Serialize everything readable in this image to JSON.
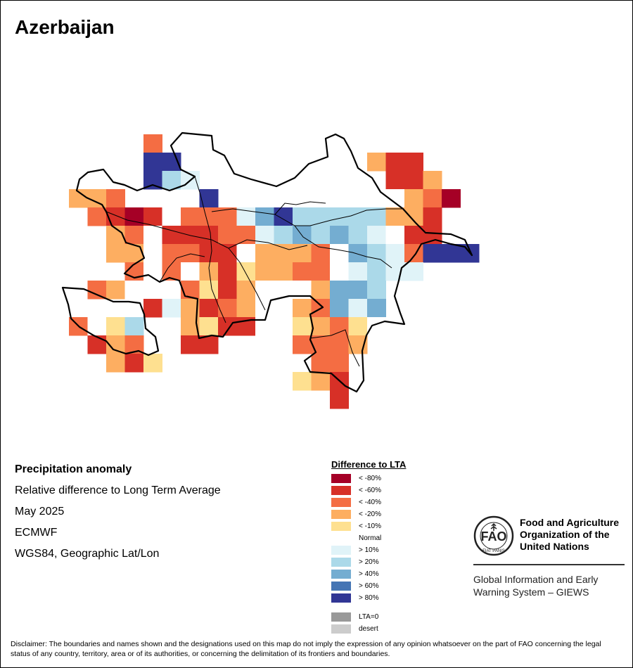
{
  "title": "Azerbaijan",
  "info": {
    "line1": "Precipitation anomaly",
    "line2": "Relative difference to Long Term Average",
    "line3": "May 2025",
    "line4": "ECMWF",
    "line5": "WGS84, Geographic Lat/Lon"
  },
  "legend": {
    "title": "Difference to LTA",
    "items": [
      {
        "label": "< -80%",
        "color": "#a50026"
      },
      {
        "label": "< -60%",
        "color": "#d73027"
      },
      {
        "label": "< -40%",
        "color": "#f46d43"
      },
      {
        "label": "< -20%",
        "color": "#fdae61"
      },
      {
        "label": "< -10%",
        "color": "#fee090"
      },
      {
        "label": "Normal",
        "color": "#ffffff"
      },
      {
        "label": "> 10%",
        "color": "#e0f3f8"
      },
      {
        "label": "> 20%",
        "color": "#abd9e9"
      },
      {
        "label": "> 40%",
        "color": "#74add1"
      },
      {
        "label": "> 60%",
        "color": "#4575b4"
      },
      {
        "label": "> 80%",
        "color": "#313695"
      }
    ],
    "extra": [
      {
        "label": "LTA=0",
        "color": "#999999"
      },
      {
        "label": "desert",
        "color": "#cccccc"
      }
    ]
  },
  "fao": {
    "name": "Food and Agriculture Organization of the United Nations",
    "subtitle": "Global Information and Early Warning System – GIEWS",
    "emblem_text": "FAO",
    "motto": "FIAT PANIS"
  },
  "disclaimer": "Disclaimer: The boundaries and names shown and the designations used on this map do not imply the expression of any opinion whatsoever on the part of FAO concerning the legal status of any country, territory, area or of its authorities, or concerning the delimitation of its frontiers and boundaries.",
  "map": {
    "cells": [
      {
        "row": 0,
        "col": 4,
        "c": "r"
      },
      {
        "row": 1,
        "col": 4,
        "c": "N"
      },
      {
        "row": 1,
        "col": 5,
        "c": "N"
      },
      {
        "row": 1,
        "col": 16,
        "c": "O"
      },
      {
        "row": 1,
        "col": 17,
        "c": "R"
      },
      {
        "row": 1,
        "col": 18,
        "c": "R"
      },
      {
        "row": 2,
        "col": 4,
        "c": "N"
      },
      {
        "row": 2,
        "col": 5,
        "c": "B2"
      },
      {
        "row": 2,
        "col": 6,
        "c": "B1"
      },
      {
        "row": 2,
        "col": 17,
        "c": "R"
      },
      {
        "row": 2,
        "col": 18,
        "c": "R"
      },
      {
        "row": 2,
        "col": 19,
        "c": "O"
      },
      {
        "row": 3,
        "col": 0,
        "c": "O"
      },
      {
        "row": 3,
        "col": 1,
        "c": "o"
      },
      {
        "row": 3,
        "col": 2,
        "c": "r"
      },
      {
        "row": 3,
        "col": 7,
        "c": "N"
      },
      {
        "row": 3,
        "col": 16,
        "c": "W"
      },
      {
        "row": 3,
        "col": 17,
        "c": "W"
      },
      {
        "row": 3,
        "col": 18,
        "c": "O"
      },
      {
        "row": 3,
        "col": 19,
        "c": "r"
      },
      {
        "row": 3,
        "col": 20,
        "c": "D"
      },
      {
        "row": 4,
        "col": 1,
        "c": "r"
      },
      {
        "row": 4,
        "col": 2,
        "c": "R"
      },
      {
        "row": 4,
        "col": 3,
        "c": "D"
      },
      {
        "row": 4,
        "col": 4,
        "c": "R"
      },
      {
        "row": 4,
        "col": 5,
        "c": "W"
      },
      {
        "row": 4,
        "col": 6,
        "c": "r"
      },
      {
        "row": 4,
        "col": 7,
        "c": "r"
      },
      {
        "row": 4,
        "col": 8,
        "c": "r"
      },
      {
        "row": 4,
        "col": 9,
        "c": "B1"
      },
      {
        "row": 4,
        "col": 10,
        "c": "B3"
      },
      {
        "row": 4,
        "col": 11,
        "c": "N"
      },
      {
        "row": 4,
        "col": 12,
        "c": "B2"
      },
      {
        "row": 4,
        "col": 13,
        "c": "B2"
      },
      {
        "row": 4,
        "col": 14,
        "c": "B2"
      },
      {
        "row": 4,
        "col": 15,
        "c": "B2"
      },
      {
        "row": 4,
        "col": 16,
        "c": "B2"
      },
      {
        "row": 4,
        "col": 17,
        "c": "o"
      },
      {
        "row": 4,
        "col": 18,
        "c": "O"
      },
      {
        "row": 4,
        "col": 19,
        "c": "R"
      },
      {
        "row": 5,
        "col": 2,
        "c": "O"
      },
      {
        "row": 5,
        "col": 3,
        "c": "r"
      },
      {
        "row": 5,
        "col": 4,
        "c": "W"
      },
      {
        "row": 5,
        "col": 5,
        "c": "R"
      },
      {
        "row": 5,
        "col": 6,
        "c": "R"
      },
      {
        "row": 5,
        "col": 7,
        "c": "R"
      },
      {
        "row": 5,
        "col": 8,
        "c": "r"
      },
      {
        "row": 5,
        "col": 9,
        "c": "r"
      },
      {
        "row": 5,
        "col": 10,
        "c": "B1"
      },
      {
        "row": 5,
        "col": 11,
        "c": "B2"
      },
      {
        "row": 5,
        "col": 12,
        "c": "B3"
      },
      {
        "row": 5,
        "col": 13,
        "c": "B2"
      },
      {
        "row": 5,
        "col": 14,
        "c": "B3"
      },
      {
        "row": 5,
        "col": 15,
        "c": "B2"
      },
      {
        "row": 5,
        "col": 16,
        "c": "B1"
      },
      {
        "row": 5,
        "col": 17,
        "c": "W"
      },
      {
        "row": 5,
        "col": 18,
        "c": "R"
      },
      {
        "row": 5,
        "col": 19,
        "c": "R"
      },
      {
        "row": 6,
        "col": 2,
        "c": "O"
      },
      {
        "row": 6,
        "col": 3,
        "c": "o"
      },
      {
        "row": 6,
        "col": 4,
        "c": "W"
      },
      {
        "row": 6,
        "col": 5,
        "c": "r"
      },
      {
        "row": 6,
        "col": 6,
        "c": "r"
      },
      {
        "row": 6,
        "col": 7,
        "c": "R"
      },
      {
        "row": 6,
        "col": 8,
        "c": "R"
      },
      {
        "row": 6,
        "col": 9,
        "c": "W"
      },
      {
        "row": 6,
        "col": 10,
        "c": "O"
      },
      {
        "row": 6,
        "col": 11,
        "c": "O"
      },
      {
        "row": 6,
        "col": 12,
        "c": "O"
      },
      {
        "row": 6,
        "col": 13,
        "c": "r"
      },
      {
        "row": 6,
        "col": 14,
        "c": "W"
      },
      {
        "row": 6,
        "col": 15,
        "c": "B3"
      },
      {
        "row": 6,
        "col": 16,
        "c": "B2"
      },
      {
        "row": 6,
        "col": 17,
        "c": "B1"
      },
      {
        "row": 6,
        "col": 18,
        "c": "r"
      },
      {
        "row": 6,
        "col": 19,
        "c": "N"
      },
      {
        "row": 6,
        "col": 20,
        "c": "N"
      },
      {
        "row": 6,
        "col": 21,
        "c": "N"
      },
      {
        "row": 7,
        "col": 3,
        "c": "r"
      },
      {
        "row": 7,
        "col": 4,
        "c": "W"
      },
      {
        "row": 7,
        "col": 5,
        "c": "r"
      },
      {
        "row": 7,
        "col": 6,
        "c": "W"
      },
      {
        "row": 7,
        "col": 7,
        "c": "O"
      },
      {
        "row": 7,
        "col": 8,
        "c": "R"
      },
      {
        "row": 7,
        "col": 9,
        "c": "Y"
      },
      {
        "row": 7,
        "col": 10,
        "c": "O"
      },
      {
        "row": 7,
        "col": 11,
        "c": "O"
      },
      {
        "row": 7,
        "col": 12,
        "c": "r"
      },
      {
        "row": 7,
        "col": 13,
        "c": "r"
      },
      {
        "row": 7,
        "col": 14,
        "c": "W"
      },
      {
        "row": 7,
        "col": 15,
        "c": "B1"
      },
      {
        "row": 7,
        "col": 16,
        "c": "B2"
      },
      {
        "row": 7,
        "col": 17,
        "c": "B1"
      },
      {
        "row": 7,
        "col": 18,
        "c": "B1"
      },
      {
        "row": 8,
        "col": 1,
        "c": "r"
      },
      {
        "row": 8,
        "col": 2,
        "c": "O"
      },
      {
        "row": 8,
        "col": 3,
        "c": "W"
      },
      {
        "row": 8,
        "col": 4,
        "c": "W"
      },
      {
        "row": 8,
        "col": 5,
        "c": "W"
      },
      {
        "row": 8,
        "col": 6,
        "c": "r"
      },
      {
        "row": 8,
        "col": 7,
        "c": "Y"
      },
      {
        "row": 8,
        "col": 8,
        "c": "R"
      },
      {
        "row": 8,
        "col": 9,
        "c": "O"
      },
      {
        "row": 8,
        "col": 10,
        "c": "W"
      },
      {
        "row": 8,
        "col": 11,
        "c": "W"
      },
      {
        "row": 8,
        "col": 12,
        "c": "W"
      },
      {
        "row": 8,
        "col": 13,
        "c": "O"
      },
      {
        "row": 8,
        "col": 14,
        "c": "B3"
      },
      {
        "row": 8,
        "col": 15,
        "c": "B3"
      },
      {
        "row": 8,
        "col": 16,
        "c": "B2"
      },
      {
        "row": 9,
        "col": 4,
        "c": "R"
      },
      {
        "row": 9,
        "col": 5,
        "c": "B1"
      },
      {
        "row": 9,
        "col": 6,
        "c": "O"
      },
      {
        "row": 9,
        "col": 7,
        "c": "R"
      },
      {
        "row": 9,
        "col": 8,
        "c": "r"
      },
      {
        "row": 9,
        "col": 9,
        "c": "O"
      },
      {
        "row": 9,
        "col": 10,
        "c": "W"
      },
      {
        "row": 9,
        "col": 11,
        "c": "W"
      },
      {
        "row": 9,
        "col": 12,
        "c": "O"
      },
      {
        "row": 9,
        "col": 13,
        "c": "r"
      },
      {
        "row": 9,
        "col": 14,
        "c": "B3"
      },
      {
        "row": 9,
        "col": 15,
        "c": "B1"
      },
      {
        "row": 9,
        "col": 16,
        "c": "B3"
      },
      {
        "row": 10,
        "col": 0,
        "c": "r"
      },
      {
        "row": 10,
        "col": 1,
        "c": "W"
      },
      {
        "row": 10,
        "col": 2,
        "c": "Y"
      },
      {
        "row": 10,
        "col": 3,
        "c": "B2"
      },
      {
        "row": 10,
        "col": 6,
        "c": "O"
      },
      {
        "row": 10,
        "col": 7,
        "c": "Y"
      },
      {
        "row": 10,
        "col": 8,
        "c": "R"
      },
      {
        "row": 10,
        "col": 9,
        "c": "R"
      },
      {
        "row": 10,
        "col": 10,
        "c": "W"
      },
      {
        "row": 10,
        "col": 11,
        "c": "W"
      },
      {
        "row": 10,
        "col": 12,
        "c": "Y"
      },
      {
        "row": 10,
        "col": 13,
        "c": "O"
      },
      {
        "row": 10,
        "col": 14,
        "c": "r"
      },
      {
        "row": 10,
        "col": 15,
        "c": "Y"
      },
      {
        "row": 10,
        "col": 16,
        "c": "W"
      },
      {
        "row": 11,
        "col": 1,
        "c": "R"
      },
      {
        "row": 11,
        "col": 2,
        "c": "O"
      },
      {
        "row": 11,
        "col": 3,
        "c": "r"
      },
      {
        "row": 11,
        "col": 6,
        "c": "R"
      },
      {
        "row": 11,
        "col": 7,
        "c": "R"
      },
      {
        "row": 11,
        "col": 12,
        "c": "r"
      },
      {
        "row": 11,
        "col": 13,
        "c": "r"
      },
      {
        "row": 11,
        "col": 14,
        "c": "r"
      },
      {
        "row": 11,
        "col": 15,
        "c": "O"
      },
      {
        "row": 12,
        "col": 2,
        "c": "O"
      },
      {
        "row": 12,
        "col": 3,
        "c": "R"
      },
      {
        "row": 12,
        "col": 4,
        "c": "Y"
      },
      {
        "row": 12,
        "col": 13,
        "c": "r"
      },
      {
        "row": 12,
        "col": 14,
        "c": "r"
      },
      {
        "row": 13,
        "col": 12,
        "c": "Y"
      },
      {
        "row": 13,
        "col": 13,
        "c": "O"
      },
      {
        "row": 13,
        "col": 14,
        "c": "R"
      },
      {
        "row": 14,
        "col": 14,
        "c": "R"
      }
    ]
  }
}
